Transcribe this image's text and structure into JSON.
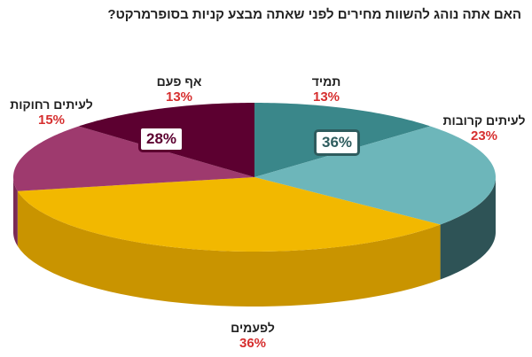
{
  "chart_data": {
    "type": "pie",
    "title": "האם אתה נוהג להשוות מחירים לפני שאתה מבצע קניות בסופרמרקט?",
    "slices": [
      {
        "label": "תמיד",
        "value": 13,
        "value_label": "13%",
        "color": "#3a878a",
        "side": "#2b6466"
      },
      {
        "label": "לעיתים קרובות",
        "value": 23,
        "value_label": "23%",
        "color": "#6db6ba",
        "side": "#2e5356"
      },
      {
        "label": "לפעמים",
        "value": 36,
        "value_label": "36%",
        "color": "#f2b800",
        "side": "#c99400"
      },
      {
        "label": "לעיתים רחוקות",
        "value": 15,
        "value_label": "15%",
        "color": "#9e3a6e",
        "side": "#7a2a55"
      },
      {
        "label": "אף פעם",
        "value": 13,
        "value_label": "13%",
        "color": "#5c0030",
        "side": "#40001f"
      }
    ],
    "group_labels": [
      {
        "text": "36%",
        "color": "#2e5c5e"
      },
      {
        "text": "28%",
        "color": "#5c0030"
      }
    ]
  }
}
